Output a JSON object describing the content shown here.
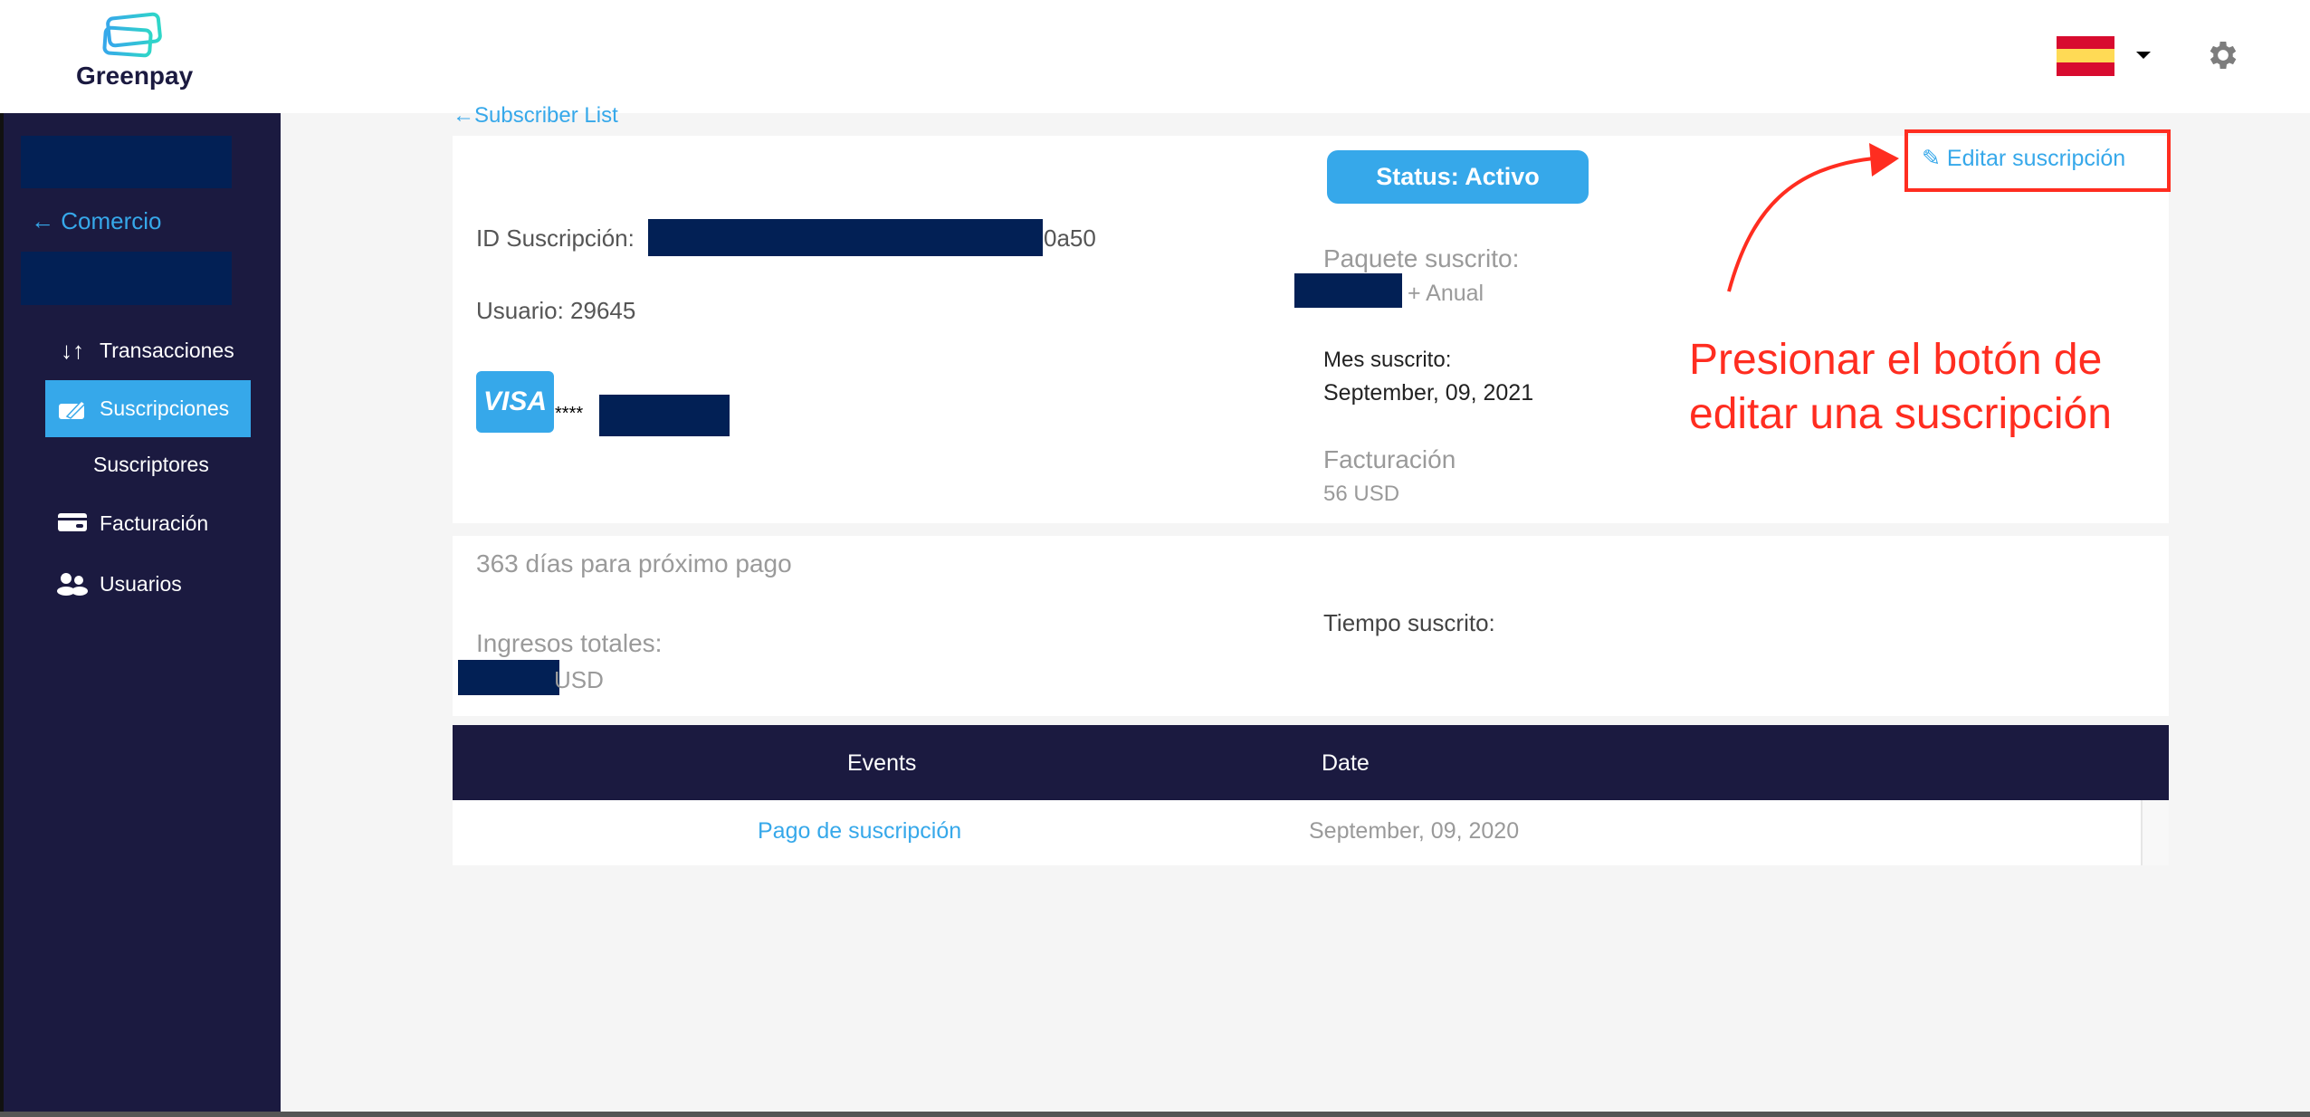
{
  "header": {
    "logo_text": "Greenpay",
    "language_flag": "spain-flag",
    "colors": {
      "brand_dark": "#1b1a40",
      "accent": "#36a8ea",
      "annotation": "#ff2d20"
    }
  },
  "sidebar": {
    "back_label": "Comercio",
    "items": [
      {
        "label": "Transacciones",
        "icon": "arrows-up-down-icon"
      },
      {
        "label": "Suscripciones",
        "icon": "edit-square-icon",
        "active": true
      },
      {
        "label": "Suscriptores"
      },
      {
        "label": "Facturación",
        "icon": "credit-card-icon"
      },
      {
        "label": "Usuarios",
        "icon": "users-icon"
      }
    ]
  },
  "main": {
    "back_link": "Subscriber List",
    "status_label": "Status: Activo",
    "edit_label": "Editar suscripción",
    "id_label": "ID Suscripción:",
    "id_suffix": "0a50",
    "user_label": "Usuario: 29645",
    "card_brand": "VISA",
    "card_mask": "****",
    "package_label": "Paquete suscrito:",
    "package_suffix": "+ Anual",
    "month_label": "Mes suscrito:",
    "month_value": "September, 09, 2021",
    "billing_label": "Facturación",
    "billing_value": "56 USD",
    "next_payment": "363 días para próximo pago",
    "income_label": "Ingresos totales:",
    "income_suffix": "USD",
    "time_label": "Tiempo suscrito:",
    "table": {
      "headers": [
        "Events",
        "Date"
      ],
      "rows": [
        {
          "event": "Pago de suscripción",
          "date": "September, 09, 2020"
        }
      ]
    }
  },
  "annotation": {
    "line1": "Presionar el botón de",
    "line2": "editar una suscripción"
  }
}
